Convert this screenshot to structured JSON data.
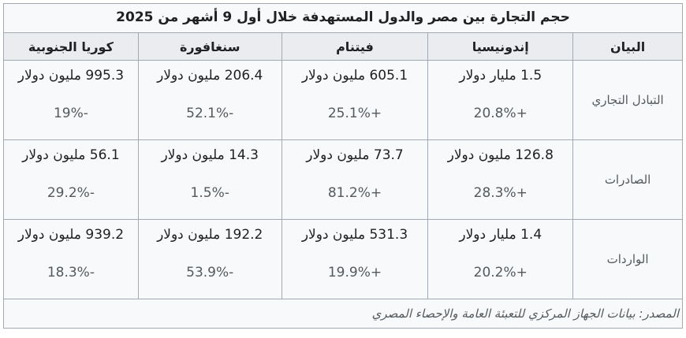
{
  "title": "حجم التجارة بين مصر والدول المستهدفة خلال أول 9 أشهر من 2025",
  "header": [
    "البيان",
    "إندونيسيا",
    "فيتنام",
    "سنغافورة",
    "كوريا الجنوبية"
  ],
  "rows": [
    {
      "label": "التبادل التجاري",
      "cells": [
        [
          "1.5 مليار دولار",
          "+20.8%"
        ],
        [
          "605.1 مليون دولار",
          "+25.1%"
        ],
        [
          "206.4 مليون دولار",
          "-52.1%"
        ],
        [
          "995.3 مليون دولار",
          "-19%"
        ]
      ]
    },
    {
      "label": "الصادرات",
      "cells": [
        [
          "126.8 مليون دولار",
          "+28.3%"
        ],
        [
          "73.7 مليون دولار",
          "+81.2%"
        ],
        [
          "14.3 مليون دولار",
          "-1.5%"
        ],
        [
          "56.1 مليون دولار",
          "-29.2%"
        ]
      ]
    },
    {
      "label": "الواردات",
      "cells": [
        [
          "1.4 مليار دولار",
          "+20.2%"
        ],
        [
          "531.3 مليون دولار",
          "+19.9%"
        ],
        [
          "192.2 مليون دولار",
          "-53.9%"
        ],
        [
          "939.2 مليون دولار",
          "-18.3%"
        ]
      ]
    }
  ],
  "source": "المصدر: بيانات الجهاز المركزي للتعبئة العامة والإحصاء المصري"
}
